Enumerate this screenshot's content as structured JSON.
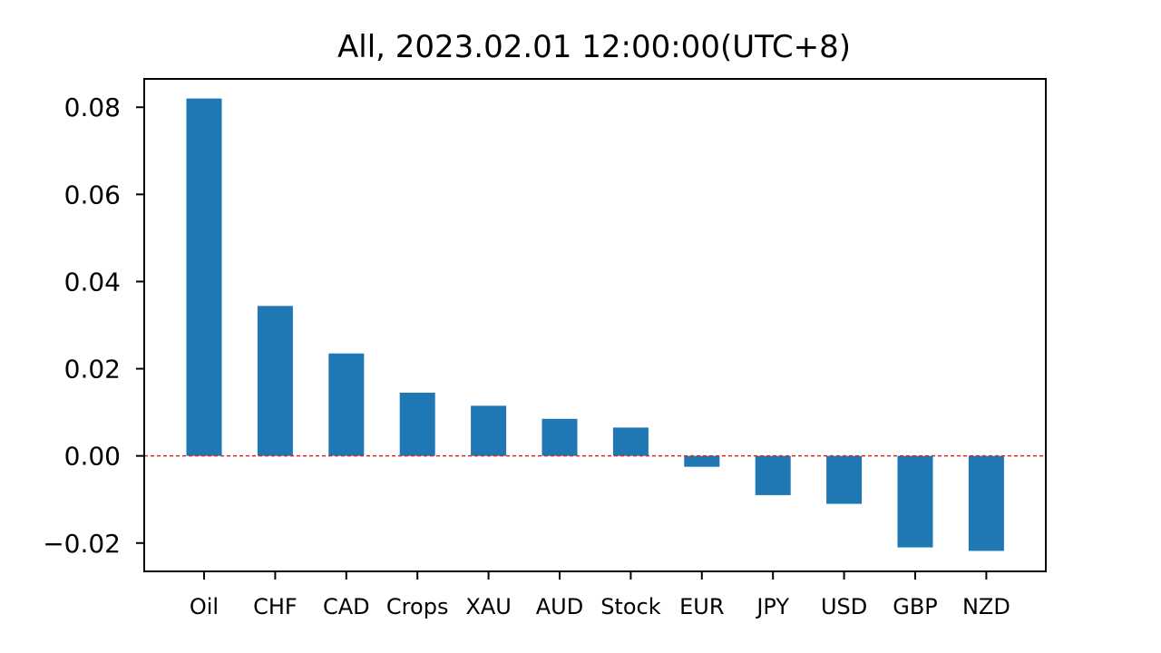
{
  "chart_data": {
    "type": "bar",
    "title": "All, 2023.02.01 12:00:00(UTC+8)",
    "xlabel": "",
    "ylabel": "",
    "categories": [
      "Oil",
      "CHF",
      "CAD",
      "Crops",
      "XAU",
      "AUD",
      "Stock",
      "EUR",
      "JPY",
      "USD",
      "GBP",
      "NZD"
    ],
    "values": [
      0.082,
      0.0344,
      0.0235,
      0.0145,
      0.0115,
      0.0085,
      0.0065,
      -0.0025,
      -0.009,
      -0.011,
      -0.021,
      -0.0218
    ],
    "ylim": [
      -0.0265,
      0.0865
    ],
    "yticks": [
      -0.02,
      0.0,
      0.02,
      0.04,
      0.06,
      0.08
    ],
    "ytick_labels": [
      "−0.02",
      "0.00",
      "0.02",
      "0.04",
      "0.06",
      "0.08"
    ],
    "bar_color": "#1f77b4",
    "zero_line": {
      "value": 0.0,
      "color": "#d62728",
      "style": "dashed"
    },
    "grid": false,
    "legend": "none"
  }
}
